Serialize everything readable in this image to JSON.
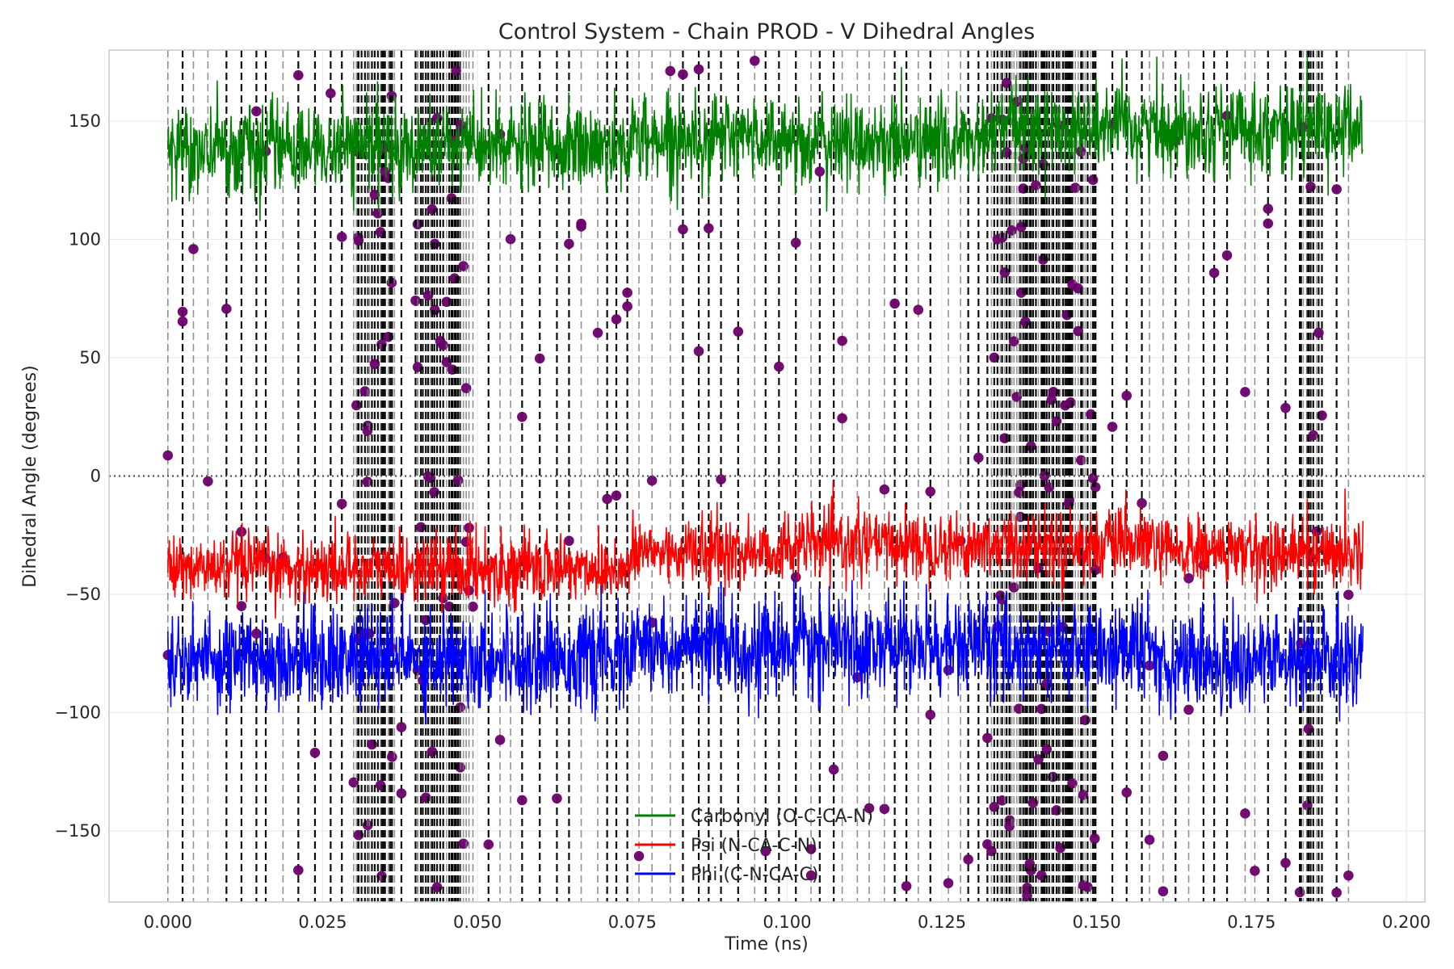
{
  "chart_data": {
    "type": "line",
    "title": "Control System - Chain PROD - V Dihedral Angles",
    "xlabel": "Time (ns)",
    "ylabel": "Dihedral Angle (degrees)",
    "xlim": [
      -0.0095,
      0.203
    ],
    "ylim": [
      -180,
      180
    ],
    "x_ticks": [
      0.0,
      0.025,
      0.05,
      0.075,
      0.1,
      0.125,
      0.15,
      0.175,
      0.2
    ],
    "x_tick_labels": [
      "0.000",
      "0.025",
      "0.050",
      "0.075",
      "0.100",
      "0.125",
      "0.150",
      "0.175",
      "0.200"
    ],
    "y_ticks": [
      -150,
      -100,
      -50,
      0,
      50,
      100,
      150
    ],
    "y_tick_labels": [
      "−150",
      "−100",
      "−50",
      "0",
      "50",
      "100",
      "150"
    ],
    "grid": true,
    "legend_position": "bottom-center",
    "zero_line": 0,
    "series": [
      {
        "name": "Carbonyl (O-C-CA-N)",
        "color": "#008000",
        "x_range": [
          0.0,
          0.193
        ],
        "mean": 140,
        "spread": 9,
        "segments": [
          {
            "x": [
              0.0,
              0.03
            ],
            "mean": 138
          },
          {
            "x": [
              0.03,
              0.075
            ],
            "mean": 139
          },
          {
            "x": [
              0.075,
              0.1
            ],
            "mean": 143
          },
          {
            "x": [
              0.1,
              0.133
            ],
            "mean": 141
          },
          {
            "x": [
              0.133,
              0.16
            ],
            "mean": 147
          },
          {
            "x": [
              0.16,
              0.193
            ],
            "mean": 147
          }
        ]
      },
      {
        "name": "Psi (N-CA-C-N)",
        "color": "#ff0000",
        "x_range": [
          0.0,
          0.193
        ],
        "mean": -35,
        "spread": 7,
        "segments": [
          {
            "x": [
              0.0,
              0.075
            ],
            "mean": -39
          },
          {
            "x": [
              0.075,
              0.1
            ],
            "mean": -32
          },
          {
            "x": [
              0.1,
              0.133
            ],
            "mean": -29
          },
          {
            "x": [
              0.133,
              0.16
            ],
            "mean": -29
          },
          {
            "x": [
              0.16,
              0.193
            ],
            "mean": -32
          }
        ]
      },
      {
        "name": "Phi (C-N-CA-C)",
        "color": "#0000ff",
        "x_range": [
          0.0,
          0.193
        ],
        "mean": -77,
        "spread": 10,
        "segments": [
          {
            "x": [
              0.0,
              0.075
            ],
            "mean": -77
          },
          {
            "x": [
              0.075,
              0.1
            ],
            "mean": -73
          },
          {
            "x": [
              0.1,
              0.133
            ],
            "mean": -72
          },
          {
            "x": [
              0.133,
              0.16
            ],
            "mean": -73
          },
          {
            "x": [
              0.16,
              0.193
            ],
            "mean": -78
          }
        ]
      }
    ],
    "transition_markers": {
      "color": "#000000",
      "style": "dashed",
      "dense_bands": [
        [
          0.03,
          0.037
        ],
        [
          0.04,
          0.049
        ],
        [
          0.133,
          0.15
        ],
        [
          0.183,
          0.186
        ]
      ],
      "points_color": "#6a006a"
    }
  }
}
